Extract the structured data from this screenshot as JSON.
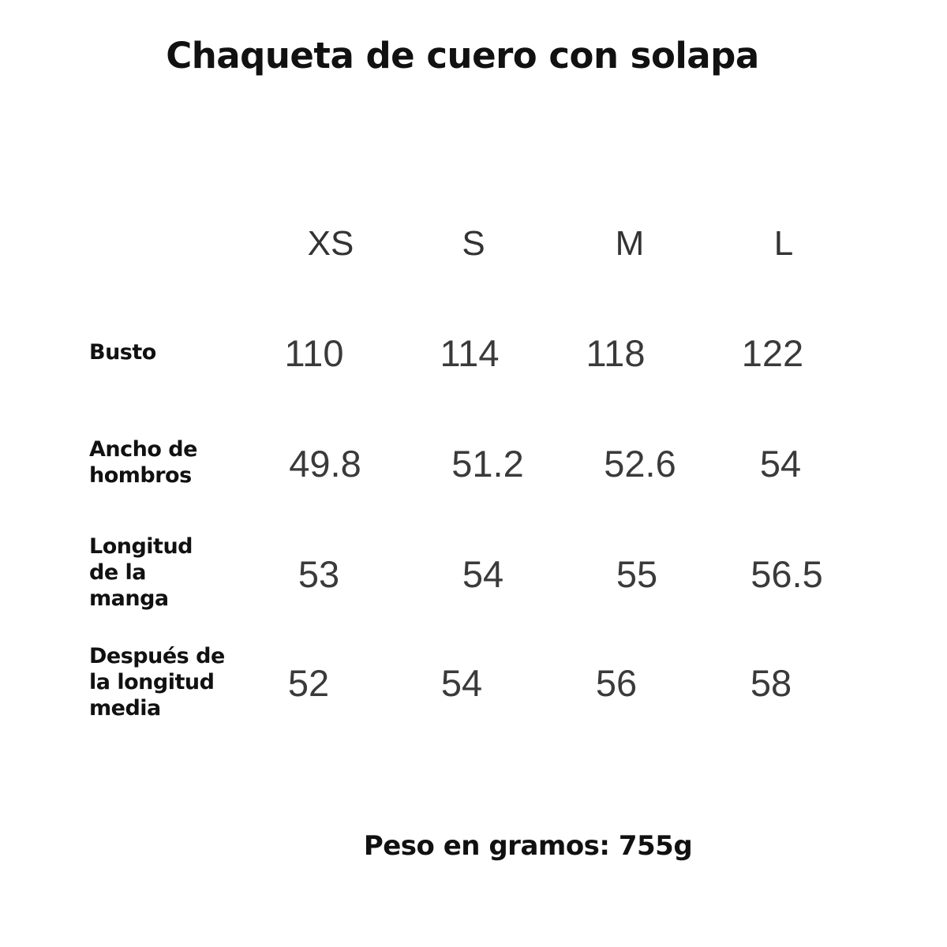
{
  "title": "Chaqueta de cuero con solapa",
  "table": {
    "sizes": [
      "XS",
      "S",
      "M",
      "L"
    ],
    "rows": [
      {
        "label": "Busto",
        "values": [
          "110",
          "114",
          "118",
          "122"
        ]
      },
      {
        "label": "Ancho de hombros",
        "values": [
          "49.8",
          "51.2",
          "52.6",
          "54"
        ]
      },
      {
        "label": "Longitud de la manga",
        "values": [
          "53",
          "54",
          "55",
          "56.5"
        ]
      },
      {
        "label": "Después de la longitud media",
        "values": [
          "52",
          "54",
          "56",
          "58"
        ]
      }
    ]
  },
  "weight": "Peso en gramos: 755g"
}
